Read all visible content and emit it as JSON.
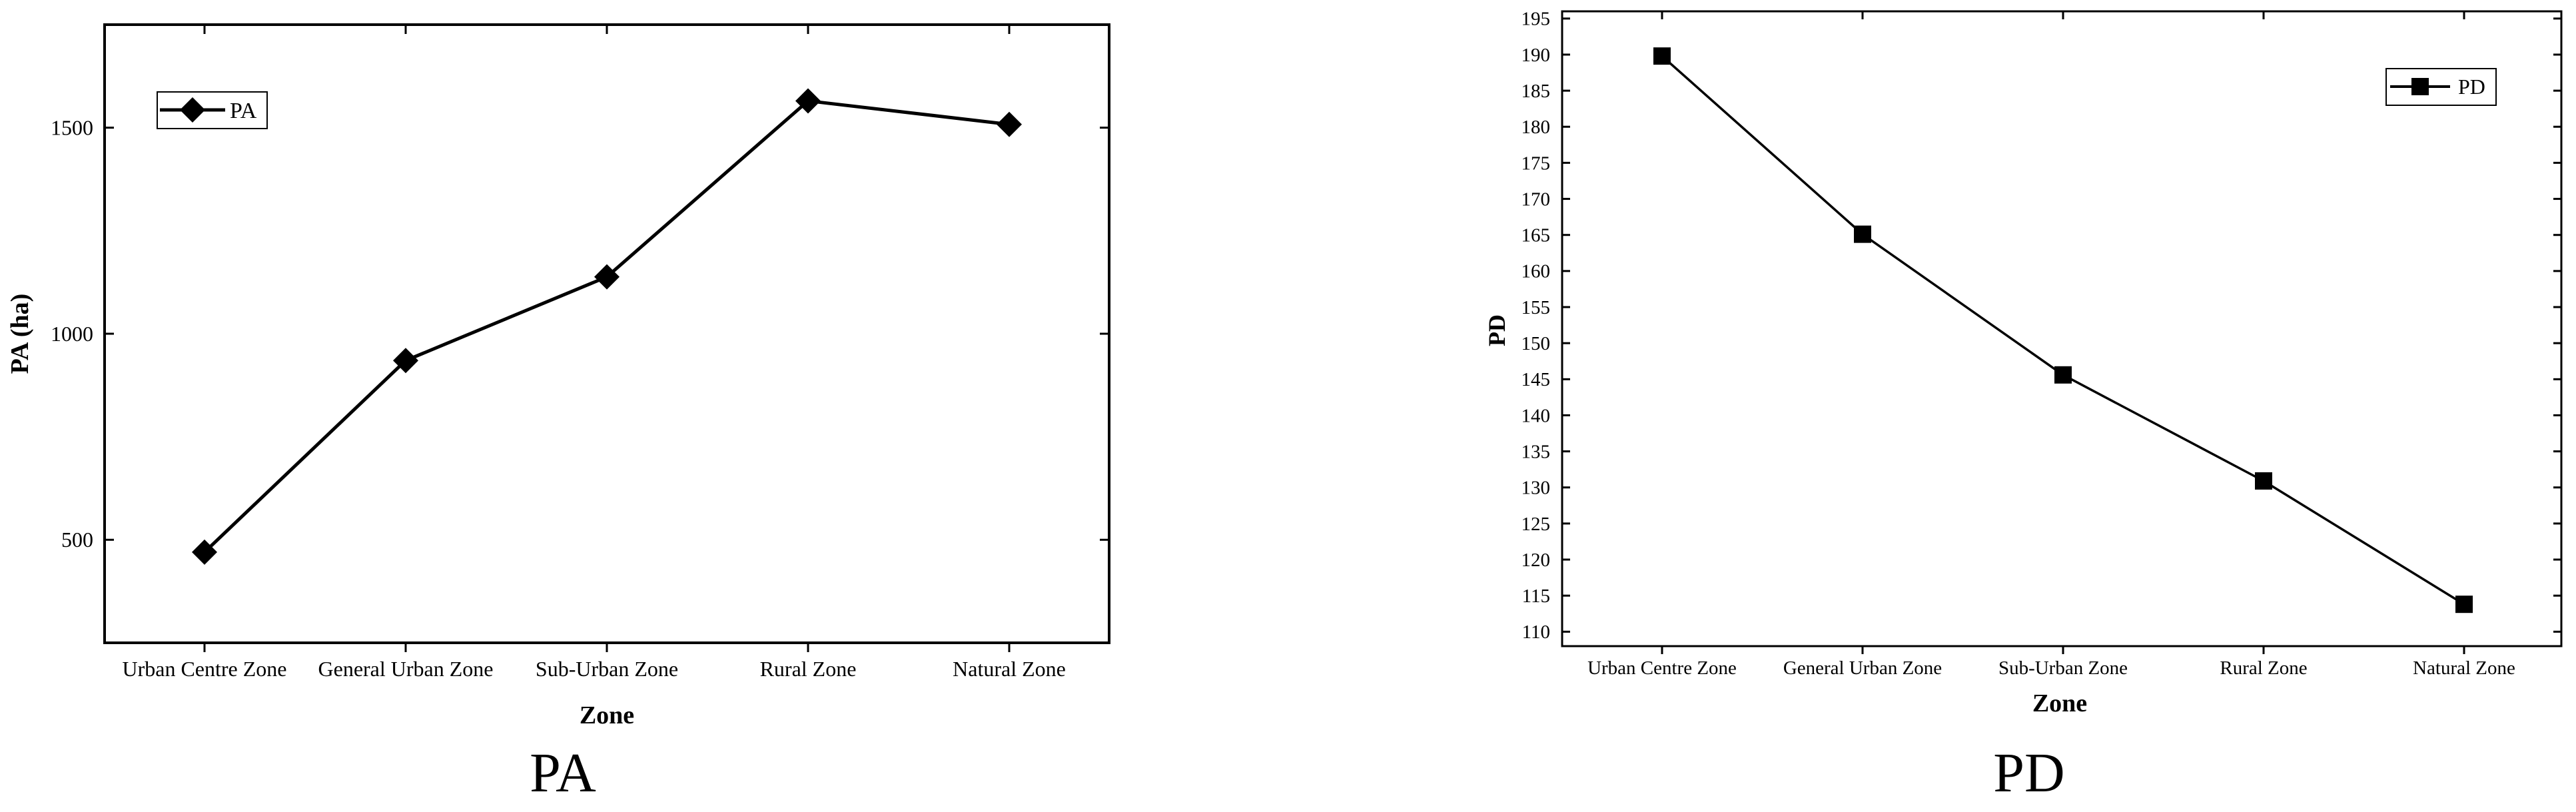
{
  "chart_data": [
    {
      "type": "line",
      "categories": [
        "Urban Centre Zone",
        "General Urban Zone",
        "Sub-Urban Zone",
        "Rural Zone",
        "Natural Zone"
      ],
      "series": [
        {
          "name": "PA",
          "values": [
            470,
            935,
            1138,
            1565,
            1508
          ],
          "marker": "diamond"
        }
      ],
      "xlabel": "Zone",
      "ylabel": "PA (ha)",
      "ylim": [
        250,
        1750
      ],
      "yticks": [
        500,
        1000,
        1500
      ],
      "caption": "PA",
      "legend": "top-left",
      "grid": false
    },
    {
      "type": "line",
      "categories": [
        "Urban Centre Zone",
        "General Urban Zone",
        "Sub-Urban Zone",
        "Rural Zone",
        "Natural Zone"
      ],
      "series": [
        {
          "name": "PD",
          "values": [
            189.8,
            165.1,
            145.6,
            130.9,
            113.8
          ],
          "marker": "square"
        }
      ],
      "xlabel": "Zone",
      "ylabel": "PD",
      "ylim": [
        108,
        196
      ],
      "yticks": [
        110,
        115,
        120,
        125,
        130,
        135,
        140,
        145,
        150,
        155,
        160,
        165,
        170,
        175,
        180,
        185,
        190,
        195
      ],
      "caption": "PD",
      "legend": "top-right",
      "grid": false
    }
  ],
  "colors": {
    "line": "#000000",
    "background": "#ffffff"
  }
}
